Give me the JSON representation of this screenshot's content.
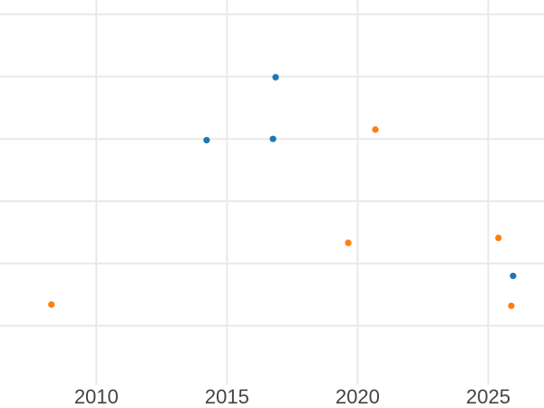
{
  "chart_data": {
    "type": "scatter",
    "title": "",
    "x_axis": {
      "tick_labels": [
        "2010",
        "2015",
        "2020",
        "2025"
      ],
      "tick_values": [
        2010,
        2015,
        2020,
        2025
      ],
      "visible_range": [
        2006.3,
        2027.1
      ]
    },
    "y_axis": {
      "tick_labels": [],
      "unit": "gridline-intervals above lowest visible gridline (no y labels shown in view)",
      "gridline_values": [
        0,
        1,
        2,
        3,
        4,
        5
      ],
      "visible_range": [
        -0.95,
        5.23
      ]
    },
    "grid": true,
    "legend_position": "none",
    "series": [
      {
        "name": "blue",
        "color": "#1f77b4",
        "marker": "circle",
        "points": [
          {
            "x": 2014.22,
            "y": 2.98
          },
          {
            "x": 2016.76,
            "y": 3.0
          },
          {
            "x": 2016.86,
            "y": 3.99
          },
          {
            "x": 2025.95,
            "y": 0.8
          }
        ]
      },
      {
        "name": "orange",
        "color": "#ff7f0e",
        "marker": "circle",
        "points": [
          {
            "x": 2008.28,
            "y": 0.34
          },
          {
            "x": 2019.64,
            "y": 1.33
          },
          {
            "x": 2020.68,
            "y": 3.15
          },
          {
            "x": 2025.39,
            "y": 1.41
          },
          {
            "x": 2025.88,
            "y": 0.32
          }
        ]
      }
    ]
  },
  "colors": {
    "background": "#ffffff",
    "gridline": "#e9e9e9",
    "tick_label": "#444444"
  }
}
